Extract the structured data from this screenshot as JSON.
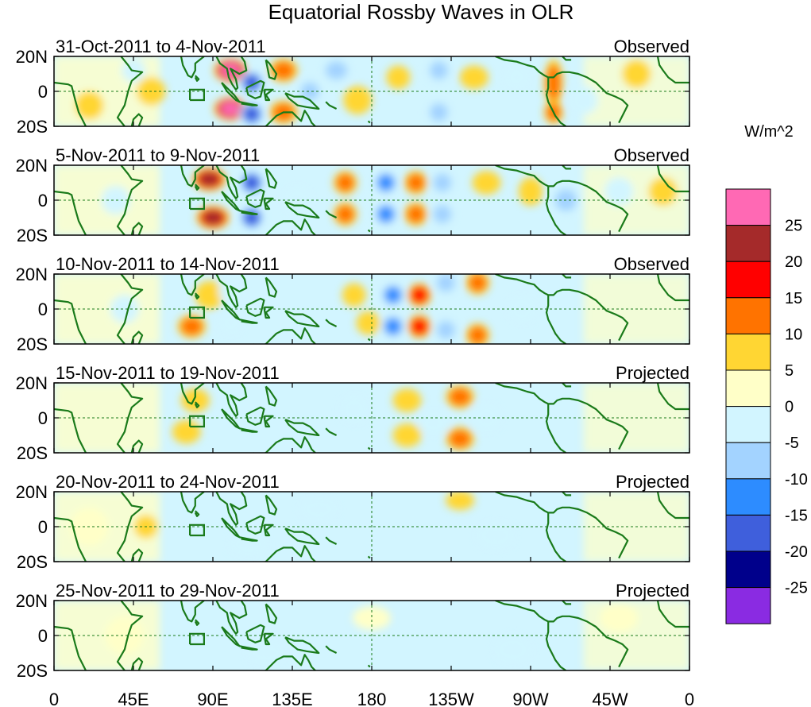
{
  "chart_data": {
    "type": "heatmap",
    "title": "Equatorial Rossby Waves in OLR",
    "variable": "OLR anomaly",
    "units_label": "W/m^2",
    "lat_range": [
      -20,
      20
    ],
    "lon_range": [
      0,
      360
    ],
    "y_tick_labels": [
      "20N",
      "0",
      "20S"
    ],
    "x_tick_labels": [
      "0",
      "45E",
      "90E",
      "135E",
      "180",
      "135W",
      "90W",
      "45W",
      "0"
    ],
    "colorbar": {
      "levels": [
        "25",
        "20",
        "15",
        "10",
        "5",
        "0",
        "-5",
        "-10",
        "-15",
        "-20",
        "-25"
      ],
      "colors": [
        "#ff69b4",
        "#a52a2a",
        "#ff0000",
        "#ff7300",
        "#ffd633",
        "#ffffc8",
        "#d2f5ff",
        "#a3d3ff",
        "#2d8cff",
        "#3f5fdc",
        "#00008b",
        "#8a2be2"
      ]
    },
    "panels": [
      {
        "period": "31-Oct-2011 to 4-Nov-2011",
        "status": "Observed",
        "anomalies": [
          [
            100,
            12,
            7,
            5,
            25
          ],
          [
            100,
            -10,
            7,
            5,
            25
          ],
          [
            112,
            5,
            5,
            5,
            -20
          ],
          [
            112,
            -13,
            5,
            5,
            -20
          ],
          [
            130,
            12,
            6,
            5,
            10
          ],
          [
            130,
            -12,
            6,
            5,
            10
          ],
          [
            145,
            0,
            5,
            5,
            -10
          ],
          [
            160,
            12,
            6,
            5,
            -10
          ],
          [
            172,
            -5,
            6,
            6,
            5
          ],
          [
            195,
            8,
            5,
            5,
            5
          ],
          [
            218,
            12,
            5,
            5,
            -12
          ],
          [
            218,
            -12,
            5,
            5,
            -12
          ],
          [
            238,
            8,
            6,
            5,
            5
          ],
          [
            262,
            8,
            5,
            5,
            -8
          ],
          [
            283,
            5,
            4,
            10,
            12
          ],
          [
            283,
            -12,
            4,
            5,
            10
          ],
          [
            300,
            -5,
            6,
            6,
            -5
          ],
          [
            330,
            10,
            6,
            6,
            5
          ],
          [
            20,
            -8,
            6,
            6,
            5
          ],
          [
            55,
            0,
            6,
            6,
            5
          ],
          [
            45,
            12,
            5,
            5,
            -5
          ]
        ]
      },
      {
        "period": "5-Nov-2011 to 9-Nov-2011",
        "status": "Observed",
        "anomalies": [
          [
            88,
            12,
            7,
            5,
            22
          ],
          [
            90,
            -10,
            7,
            5,
            22
          ],
          [
            112,
            10,
            5,
            5,
            -20
          ],
          [
            112,
            -10,
            5,
            5,
            -20
          ],
          [
            138,
            0,
            6,
            6,
            -5
          ],
          [
            165,
            10,
            5,
            5,
            10
          ],
          [
            165,
            -8,
            5,
            5,
            10
          ],
          [
            188,
            10,
            5,
            5,
            -15
          ],
          [
            188,
            -8,
            5,
            5,
            -15
          ],
          [
            205,
            10,
            5,
            5,
            10
          ],
          [
            205,
            -8,
            5,
            5,
            10
          ],
          [
            220,
            10,
            5,
            5,
            -10
          ],
          [
            220,
            -8,
            5,
            5,
            -10
          ],
          [
            245,
            10,
            6,
            5,
            5
          ],
          [
            270,
            5,
            5,
            6,
            8
          ],
          [
            290,
            0,
            6,
            6,
            -12
          ],
          [
            320,
            5,
            6,
            6,
            -5
          ],
          [
            345,
            5,
            6,
            6,
            5
          ],
          [
            35,
            0,
            6,
            6,
            -8
          ]
        ]
      },
      {
        "period": "10-Nov-2011 to 14-Nov-2011",
        "status": "Observed",
        "anomalies": [
          [
            88,
            8,
            6,
            6,
            8
          ],
          [
            78,
            -10,
            6,
            5,
            12
          ],
          [
            100,
            10,
            5,
            5,
            -8
          ],
          [
            100,
            -8,
            5,
            5,
            -8
          ],
          [
            170,
            8,
            5,
            5,
            5
          ],
          [
            178,
            -8,
            5,
            5,
            5
          ],
          [
            192,
            8,
            5,
            5,
            -15
          ],
          [
            192,
            -10,
            5,
            5,
            -15
          ],
          [
            207,
            8,
            5,
            5,
            18
          ],
          [
            207,
            -10,
            5,
            5,
            18
          ],
          [
            222,
            15,
            5,
            5,
            -12
          ],
          [
            222,
            -12,
            5,
            5,
            -10
          ],
          [
            240,
            15,
            5,
            5,
            10
          ],
          [
            240,
            -15,
            5,
            5,
            10
          ],
          [
            265,
            0,
            6,
            6,
            -8
          ],
          [
            40,
            0,
            6,
            6,
            -5
          ]
        ]
      },
      {
        "period": "15-Nov-2011 to 19-Nov-2011",
        "status": "Projected",
        "anomalies": [
          [
            80,
            10,
            6,
            5,
            5
          ],
          [
            75,
            -8,
            6,
            5,
            5
          ],
          [
            170,
            5,
            6,
            6,
            -5
          ],
          [
            200,
            10,
            6,
            5,
            5
          ],
          [
            200,
            -10,
            6,
            5,
            5
          ],
          [
            230,
            12,
            6,
            5,
            10
          ],
          [
            230,
            -12,
            6,
            5,
            10
          ],
          [
            215,
            -3,
            6,
            5,
            -5
          ],
          [
            245,
            0,
            6,
            6,
            -4
          ]
        ]
      },
      {
        "period": "20-Nov-2011 to 24-Nov-2011",
        "status": "Projected",
        "anomalies": [
          [
            52,
            0,
            5,
            5,
            8
          ],
          [
            110,
            -10,
            8,
            5,
            -5
          ],
          [
            150,
            10,
            8,
            5,
            -5
          ],
          [
            230,
            15,
            6,
            4,
            5
          ],
          [
            250,
            -5,
            8,
            6,
            -3
          ],
          [
            20,
            0,
            8,
            8,
            3
          ]
        ]
      },
      {
        "period": "25-Nov-2011 to 29-Nov-2011",
        "status": "Projected",
        "anomalies": [
          [
            40,
            0,
            8,
            8,
            3
          ],
          [
            120,
            -10,
            8,
            5,
            -4
          ],
          [
            180,
            10,
            8,
            5,
            3
          ],
          [
            260,
            -8,
            8,
            6,
            -3
          ],
          [
            320,
            10,
            8,
            6,
            3
          ]
        ]
      }
    ]
  }
}
